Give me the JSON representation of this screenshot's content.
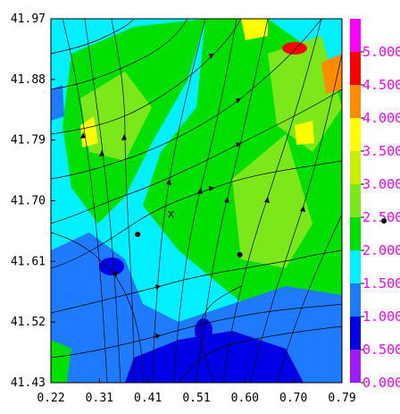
{
  "chart_data": {
    "type": "heatmap",
    "title": "",
    "xlabel": "",
    "ylabel": "",
    "x_ticks": [
      "0.22",
      "0.31",
      "0.41",
      "0.51",
      "0.60",
      "0.70",
      "0.79"
    ],
    "y_ticks": [
      "41.97",
      "41.88",
      "41.79",
      "41.70",
      "41.61",
      "41.52",
      "41.43"
    ],
    "xlim": [
      0.22,
      0.79
    ],
    "ylim": [
      41.43,
      41.97
    ],
    "colorbar": {
      "range": [
        0.0,
        5.5
      ],
      "labels": [
        "5.000",
        "4.500",
        "4.000",
        "3.500",
        "3.000",
        "2.500",
        "2.000",
        "1.500",
        "1.000",
        "0.500",
        "0.000"
      ],
      "bins": [
        {
          "from": 0.0,
          "to": 0.5,
          "color": "#9a1cff"
        },
        {
          "from": 0.5,
          "to": 1.0,
          "color": "#0000e6"
        },
        {
          "from": 1.0,
          "to": 1.5,
          "color": "#1e7bff"
        },
        {
          "from": 1.5,
          "to": 2.0,
          "color": "#00f0ff"
        },
        {
          "from": 2.0,
          "to": 2.5,
          "color": "#00e000"
        },
        {
          "from": 2.5,
          "to": 3.0,
          "color": "#7ce81a"
        },
        {
          "from": 3.0,
          "to": 3.5,
          "color": "#c8f000"
        },
        {
          "from": 3.5,
          "to": 4.0,
          "color": "#ffff00"
        },
        {
          "from": 4.0,
          "to": 4.5,
          "color": "#ff8c00"
        },
        {
          "from": 4.5,
          "to": 5.0,
          "color": "#ff0000"
        },
        {
          "from": 5.0,
          "to": 5.5,
          "color": "#ff00ff"
        }
      ]
    },
    "points": [
      {
        "x": 0.39,
        "y": 41.65
      },
      {
        "x": 0.59,
        "y": 41.62
      }
    ],
    "annotations": [
      {
        "text": "x",
        "x": 0.455,
        "y": 41.675
      }
    ]
  }
}
